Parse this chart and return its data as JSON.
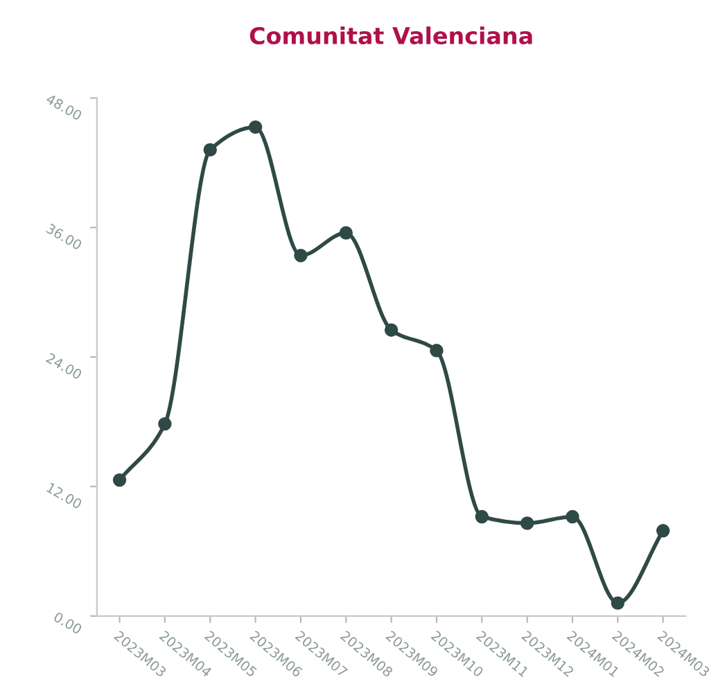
{
  "chart_data": {
    "type": "line",
    "title": "Comunitat Valenciana",
    "categories": [
      "2023M03",
      "2023M04",
      "2023M05",
      "2023M06",
      "2023M07",
      "2023M08",
      "2023M09",
      "2023M10",
      "2023M11",
      "2023M12",
      "2024M01",
      "2024M02",
      "2024M03"
    ],
    "series": [
      {
        "color": "#2f4a46",
        "values": [
          12.6,
          17.8,
          43.2,
          45.3,
          33.4,
          35.5,
          26.5,
          24.6,
          9.2,
          8.6,
          9.2,
          1.2,
          7.9
        ]
      }
    ],
    "ylim": [
      0,
      48
    ],
    "yticks": [
      {
        "value": 0,
        "label": "0.00"
      },
      {
        "value": 12,
        "label": "12.00"
      },
      {
        "value": 24,
        "label": "24.00"
      },
      {
        "value": 36,
        "label": "36.00"
      },
      {
        "value": 48,
        "label": "48.00"
      }
    ],
    "marker": "circle",
    "grid": false
  }
}
